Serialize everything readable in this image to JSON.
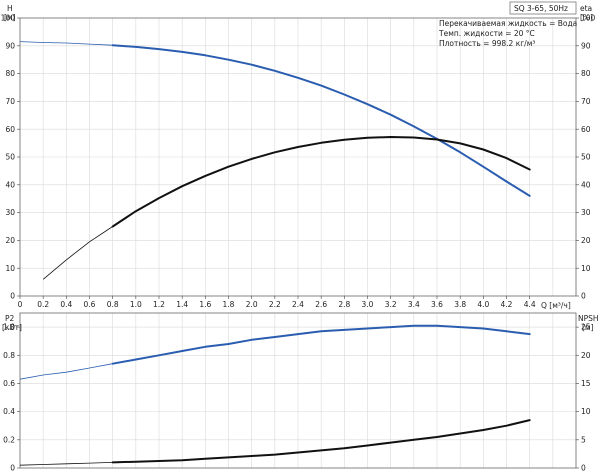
{
  "chart_data": [
    {
      "type": "line",
      "title": "SQ 3-65, 50Hz",
      "legend": {
        "placement": "top-right",
        "lines": [
          "Перекачиваемая жидкость = Вода",
          "Темп. жидкости = 20 °C",
          "Плотность = 998.2 кг/м³"
        ]
      },
      "xlabel": "Q [м³/ч]",
      "xlim": [
        0,
        4.8
      ],
      "x_ticks": [
        "0",
        "0.2",
        "0.4",
        "0.6",
        "0.8",
        "1.0",
        "1.2",
        "1.4",
        "1.6",
        "1.8",
        "2.0",
        "2.2",
        "2.4",
        "2.6",
        "2.8",
        "3.0",
        "3.2",
        "3.4",
        "3.6",
        "3.8",
        "4.0",
        "4.2",
        "4.4"
      ],
      "y_left": {
        "label": "H",
        "unit": "[м]",
        "lim": [
          0,
          100
        ],
        "ticks": [
          "0",
          "10",
          "20",
          "30",
          "40",
          "50",
          "60",
          "70",
          "80",
          "90",
          "100"
        ]
      },
      "y_right": {
        "label": "eta",
        "unit": "[%]",
        "lim": [
          0,
          100
        ],
        "ticks": [
          "0",
          "10",
          "20",
          "30",
          "40",
          "50",
          "60",
          "70",
          "80",
          "90",
          "100"
        ]
      },
      "grid": true,
      "series": [
        {
          "axis": "left",
          "color": "#2a5db0",
          "x": [
            0.0,
            0.2,
            0.4,
            0.6,
            0.8,
            1.0,
            1.2,
            1.4,
            1.6,
            1.8,
            2.0,
            2.2,
            2.4,
            2.6,
            2.8,
            3.0,
            3.2,
            3.4,
            3.6,
            3.8,
            4.0,
            4.2,
            4.4
          ],
          "y": [
            91.5,
            91.2,
            91.0,
            90.6,
            90.2,
            89.6,
            88.8,
            87.8,
            86.6,
            85.0,
            83.2,
            81.0,
            78.5,
            75.7,
            72.5,
            69.0,
            65.2,
            61.0,
            56.5,
            51.7,
            46.5,
            41.2,
            36.0
          ],
          "solid_from": 0.9
        },
        {
          "axis": "right",
          "color": "#111111",
          "x": [
            0.2,
            0.4,
            0.6,
            0.8,
            1.0,
            1.2,
            1.4,
            1.6,
            1.8,
            2.0,
            2.2,
            2.4,
            2.6,
            2.8,
            3.0,
            3.2,
            3.4,
            3.6,
            3.8,
            4.0,
            4.2,
            4.4
          ],
          "y": [
            6.0,
            13.0,
            19.5,
            25.0,
            30.5,
            35.2,
            39.5,
            43.2,
            46.5,
            49.3,
            51.7,
            53.6,
            55.1,
            56.2,
            56.9,
            57.2,
            57.0,
            56.3,
            54.9,
            52.7,
            49.6,
            45.5
          ],
          "solid_from": 0.9
        }
      ]
    },
    {
      "type": "line",
      "xlim": [
        0,
        4.8
      ],
      "y_left": {
        "label": "P2",
        "unit": "[кВт]",
        "lim": [
          0,
          1.1
        ],
        "ticks": [
          "0",
          "0.2",
          "0.4",
          "0.6",
          "0.8",
          "1.0"
        ]
      },
      "y_right": {
        "label": "NPSH",
        "unit": "[м]",
        "lim": [
          0,
          27.5
        ],
        "ticks": [
          "0",
          "5",
          "10",
          "15",
          "20",
          "25"
        ]
      },
      "grid": true,
      "series": [
        {
          "axis": "left",
          "color": "#2a5db0",
          "x": [
            0.0,
            0.2,
            0.4,
            0.6,
            0.8,
            1.0,
            1.2,
            1.4,
            1.6,
            1.8,
            2.0,
            2.2,
            2.4,
            2.6,
            2.8,
            3.0,
            3.2,
            3.4,
            3.6,
            3.8,
            4.0,
            4.2,
            4.4
          ],
          "y": [
            0.63,
            0.66,
            0.68,
            0.71,
            0.74,
            0.77,
            0.8,
            0.83,
            0.86,
            0.88,
            0.91,
            0.93,
            0.95,
            0.97,
            0.98,
            0.99,
            1.0,
            1.01,
            1.01,
            1.0,
            0.99,
            0.97,
            0.95
          ],
          "solid_from": 0.9
        },
        {
          "axis": "left",
          "color": "#111111",
          "x": [
            0.0,
            0.2,
            0.4,
            0.6,
            0.8,
            1.0,
            1.2,
            1.4,
            1.6,
            1.8,
            2.0,
            2.2,
            2.4,
            2.6,
            2.8,
            3.0,
            3.2,
            3.4,
            3.6,
            3.8,
            4.0,
            4.2,
            4.4
          ],
          "y": [
            0.02,
            0.025,
            0.03,
            0.035,
            0.04,
            0.045,
            0.05,
            0.055,
            0.065,
            0.075,
            0.085,
            0.095,
            0.11,
            0.125,
            0.14,
            0.16,
            0.18,
            0.2,
            0.22,
            0.245,
            0.27,
            0.3,
            0.34
          ],
          "solid_from": 0.9
        }
      ]
    }
  ]
}
